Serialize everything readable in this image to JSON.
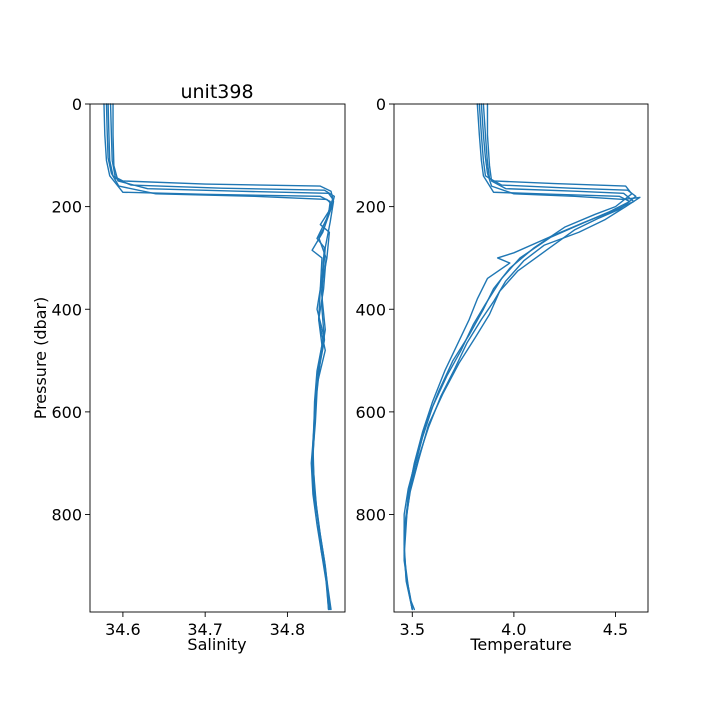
{
  "chart_data": [
    {
      "type": "line",
      "title": "unit398",
      "xlabel": "Salinity",
      "ylabel": "Pressure (dbar)",
      "xlim": [
        34.56,
        34.87
      ],
      "ylim": [
        990,
        0
      ],
      "y_inverted": true,
      "xticks": [
        34.6,
        34.7,
        34.8
      ],
      "xtick_labels": [
        "34.6",
        "34.7",
        "34.8"
      ],
      "yticks": [
        0,
        200,
        400,
        600,
        800
      ],
      "ytick_labels": [
        "0",
        "200",
        "400",
        "600",
        "800"
      ],
      "grid": false,
      "color": "#1f77b4",
      "series": [
        {
          "points": [
            [
              34.582,
              0
            ],
            [
              34.583,
              60
            ],
            [
              34.584,
              110
            ],
            [
              34.588,
              140
            ],
            [
              34.6,
              150
            ],
            [
              34.7,
              156
            ],
            [
              34.84,
              160
            ],
            [
              34.853,
              170
            ],
            [
              34.856,
              190
            ],
            [
              34.852,
              230
            ],
            [
              34.846,
              280
            ],
            [
              34.843,
              340
            ],
            [
              34.842,
              400
            ],
            [
              34.845,
              460
            ],
            [
              34.838,
              520
            ],
            [
              34.834,
              580
            ],
            [
              34.832,
              640
            ],
            [
              34.83,
              700
            ],
            [
              34.832,
              760
            ],
            [
              34.838,
              820
            ],
            [
              34.843,
              880
            ],
            [
              34.848,
              940
            ],
            [
              34.851,
              985
            ]
          ]
        },
        {
          "points": [
            [
              34.585,
              0
            ],
            [
              34.586,
              60
            ],
            [
              34.587,
              110
            ],
            [
              34.591,
              145
            ],
            [
              34.61,
              158
            ],
            [
              34.72,
              164
            ],
            [
              34.845,
              168
            ],
            [
              34.857,
              180
            ],
            [
              34.854,
              200
            ],
            [
              34.845,
              240
            ],
            [
              34.838,
              260
            ],
            [
              34.847,
              300
            ],
            [
              34.844,
              360
            ],
            [
              34.838,
              420
            ],
            [
              34.846,
              480
            ],
            [
              34.837,
              540
            ],
            [
              34.833,
              600
            ],
            [
              34.831,
              660
            ],
            [
              34.832,
              720
            ],
            [
              34.835,
              780
            ],
            [
              34.84,
              840
            ],
            [
              34.846,
              900
            ],
            [
              34.85,
              960
            ],
            [
              34.852,
              985
            ]
          ]
        },
        {
          "points": [
            [
              34.588,
              0
            ],
            [
              34.588,
              60
            ],
            [
              34.589,
              120
            ],
            [
              34.594,
              150
            ],
            [
              34.63,
              165
            ],
            [
              34.74,
              170
            ],
            [
              34.85,
              174
            ],
            [
              34.855,
              185
            ],
            [
              34.85,
              210
            ],
            [
              34.84,
              235
            ],
            [
              34.851,
              250
            ],
            [
              34.848,
              300
            ],
            [
              34.841,
              360
            ],
            [
              34.846,
              440
            ],
            [
              34.84,
              500
            ],
            [
              34.836,
              560
            ],
            [
              34.834,
              620
            ],
            [
              34.83,
              700
            ],
            [
              34.833,
              760
            ],
            [
              34.839,
              830
            ],
            [
              34.845,
              890
            ],
            [
              34.849,
              940
            ],
            [
              34.853,
              985
            ]
          ]
        },
        {
          "points": [
            [
              34.577,
              0
            ],
            [
              34.578,
              60
            ],
            [
              34.58,
              110
            ],
            [
              34.584,
              140
            ],
            [
              34.6,
              172
            ],
            [
              34.7,
              176
            ],
            [
              34.84,
              180
            ],
            [
              34.852,
              190
            ],
            [
              34.85,
              215
            ],
            [
              34.843,
              250
            ],
            [
              34.83,
              285
            ],
            [
              34.842,
              300
            ],
            [
              34.84,
              360
            ],
            [
              34.838,
              420
            ],
            [
              34.842,
              470
            ],
            [
              34.836,
              520
            ],
            [
              34.833,
              580
            ],
            [
              34.832,
              640
            ],
            [
              34.829,
              700
            ],
            [
              34.831,
              760
            ],
            [
              34.836,
              820
            ],
            [
              34.842,
              880
            ],
            [
              34.847,
              930
            ],
            [
              34.85,
              985
            ]
          ]
        },
        {
          "points": [
            [
              34.58,
              0
            ],
            [
              34.581,
              60
            ],
            [
              34.582,
              105
            ],
            [
              34.586,
              135
            ],
            [
              34.595,
              160
            ],
            [
              34.64,
              175
            ],
            [
              34.76,
              180
            ],
            [
              34.848,
              186
            ],
            [
              34.854,
              196
            ],
            [
              34.847,
              226
            ],
            [
              34.836,
              262
            ],
            [
              34.845,
              280
            ],
            [
              34.842,
              340
            ],
            [
              34.836,
              400
            ],
            [
              34.844,
              450
            ],
            [
              34.838,
              510
            ],
            [
              34.835,
              570
            ],
            [
              34.833,
              630
            ],
            [
              34.831,
              690
            ],
            [
              34.833,
              750
            ],
            [
              34.837,
              810
            ],
            [
              34.841,
              870
            ],
            [
              34.847,
              920
            ],
            [
              34.85,
              985
            ]
          ]
        }
      ]
    },
    {
      "type": "line",
      "title": "",
      "xlabel": "Temperature",
      "ylabel": "",
      "xlim": [
        3.41,
        4.66
      ],
      "ylim": [
        990,
        0
      ],
      "y_inverted": true,
      "xticks": [
        3.5,
        4.0,
        4.5
      ],
      "xtick_labels": [
        "3.5",
        "4.0",
        "4.5"
      ],
      "yticks": [
        0,
        200,
        400,
        600,
        800
      ],
      "ytick_labels": [
        "0",
        "200",
        "400",
        "600",
        "800"
      ],
      "grid": false,
      "color": "#1f77b4",
      "series": [
        {
          "points": [
            [
              3.83,
              0
            ],
            [
              3.84,
              60
            ],
            [
              3.85,
              110
            ],
            [
              3.86,
              140
            ],
            [
              3.9,
              150
            ],
            [
              4.2,
              155
            ],
            [
              4.55,
              160
            ],
            [
              4.58,
              175
            ],
            [
              4.5,
              200
            ],
            [
              4.4,
              215
            ],
            [
              4.25,
              240
            ],
            [
              4.1,
              280
            ],
            [
              3.98,
              320
            ],
            [
              3.9,
              360
            ],
            [
              3.85,
              400
            ],
            [
              3.78,
              450
            ],
            [
              3.7,
              500
            ],
            [
              3.63,
              560
            ],
            [
              3.57,
              620
            ],
            [
              3.52,
              690
            ],
            [
              3.48,
              750
            ],
            [
              3.46,
              800
            ],
            [
              3.46,
              860
            ],
            [
              3.47,
              920
            ],
            [
              3.49,
              960
            ],
            [
              3.5,
              985
            ]
          ]
        },
        {
          "points": [
            [
              3.85,
              0
            ],
            [
              3.86,
              60
            ],
            [
              3.87,
              115
            ],
            [
              3.88,
              145
            ],
            [
              3.94,
              158
            ],
            [
              4.28,
              164
            ],
            [
              4.56,
              168
            ],
            [
              4.6,
              180
            ],
            [
              4.52,
              205
            ],
            [
              4.42,
              222
            ],
            [
              4.3,
              245
            ],
            [
              4.16,
              285
            ],
            [
              4.02,
              325
            ],
            [
              3.93,
              365
            ],
            [
              3.88,
              410
            ],
            [
              3.81,
              455
            ],
            [
              3.73,
              505
            ],
            [
              3.65,
              565
            ],
            [
              3.58,
              625
            ],
            [
              3.53,
              695
            ],
            [
              3.49,
              755
            ],
            [
              3.47,
              805
            ],
            [
              3.46,
              865
            ],
            [
              3.47,
              925
            ],
            [
              3.49,
              965
            ],
            [
              3.51,
              985
            ]
          ]
        },
        {
          "points": [
            [
              3.87,
              0
            ],
            [
              3.87,
              60
            ],
            [
              3.88,
              120
            ],
            [
              3.89,
              150
            ],
            [
              3.96,
              165
            ],
            [
              4.3,
              170
            ],
            [
              4.54,
              174
            ],
            [
              4.59,
              190
            ],
            [
              4.48,
              210
            ],
            [
              4.35,
              230
            ],
            [
              4.2,
              255
            ],
            [
              4.0,
              290
            ],
            [
              3.92,
              300
            ],
            [
              3.98,
              310
            ],
            [
              3.87,
              340
            ],
            [
              3.82,
              380
            ],
            [
              3.78,
              420
            ],
            [
              3.72,
              470
            ],
            [
              3.66,
              520
            ],
            [
              3.6,
              580
            ],
            [
              3.55,
              640
            ],
            [
              3.51,
              700
            ],
            [
              3.48,
              760
            ],
            [
              3.47,
              820
            ],
            [
              3.46,
              880
            ],
            [
              3.48,
              940
            ],
            [
              3.5,
              985
            ]
          ]
        },
        {
          "points": [
            [
              3.82,
              0
            ],
            [
              3.83,
              60
            ],
            [
              3.84,
              110
            ],
            [
              3.85,
              140
            ],
            [
              3.9,
              172
            ],
            [
              4.2,
              176
            ],
            [
              4.52,
              180
            ],
            [
              4.57,
              190
            ],
            [
              4.47,
              210
            ],
            [
              4.34,
              232
            ],
            [
              4.18,
              260
            ],
            [
              4.03,
              300
            ],
            [
              3.94,
              340
            ],
            [
              3.86,
              390
            ],
            [
              3.8,
              430
            ],
            [
              3.74,
              480
            ],
            [
              3.67,
              530
            ],
            [
              3.6,
              590
            ],
            [
              3.55,
              650
            ],
            [
              3.51,
              710
            ],
            [
              3.48,
              770
            ],
            [
              3.46,
              830
            ],
            [
              3.46,
              890
            ],
            [
              3.48,
              945
            ],
            [
              3.5,
              985
            ]
          ]
        },
        {
          "points": [
            [
              3.84,
              0
            ],
            [
              3.85,
              60
            ],
            [
              3.86,
              105
            ],
            [
              3.87,
              135
            ],
            [
              3.89,
              160
            ],
            [
              4.0,
              175
            ],
            [
              4.3,
              180
            ],
            [
              4.54,
              186
            ],
            [
              4.62,
              182
            ],
            [
              4.55,
              200
            ],
            [
              4.45,
              225
            ],
            [
              4.32,
              250
            ],
            [
              4.15,
              275
            ],
            [
              4.05,
              305
            ],
            [
              3.96,
              345
            ],
            [
              3.9,
              385
            ],
            [
              3.84,
              420
            ],
            [
              3.77,
              465
            ],
            [
              3.71,
              515
            ],
            [
              3.64,
              570
            ],
            [
              3.58,
              630
            ],
            [
              3.53,
              690
            ],
            [
              3.49,
              750
            ],
            [
              3.47,
              810
            ],
            [
              3.46,
              870
            ],
            [
              3.47,
              930
            ],
            [
              3.5,
              985
            ]
          ]
        }
      ]
    }
  ]
}
